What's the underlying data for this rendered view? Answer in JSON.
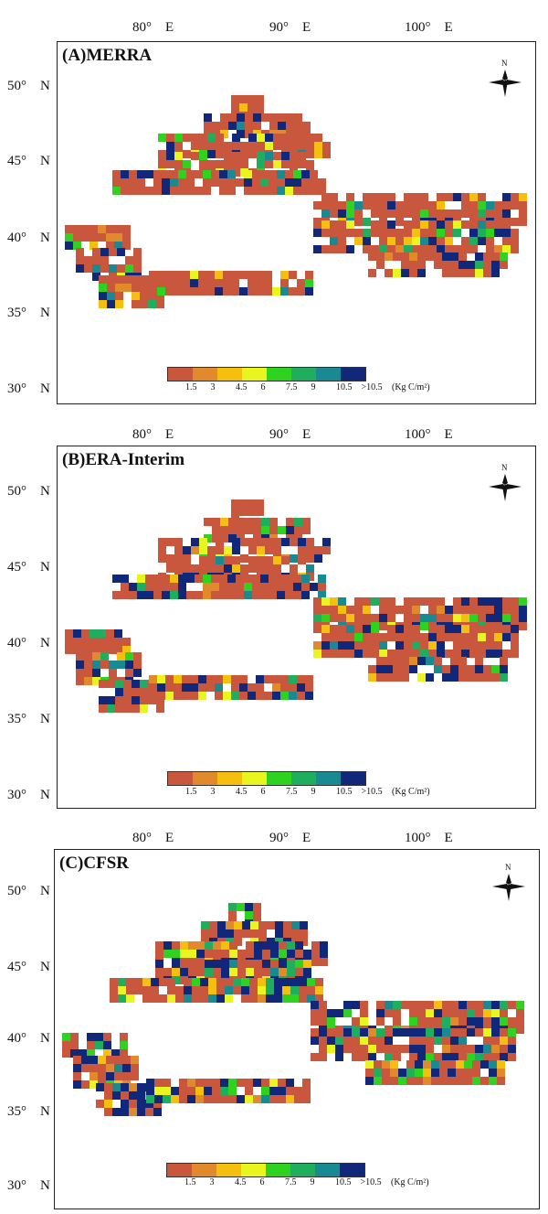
{
  "panels": [
    {
      "title": "(A)MERRA",
      "lon_labels": [
        "80°　E",
        "90°　E",
        "100°　E"
      ],
      "lat_labels": [
        "50°　N",
        "45°　N",
        "40°　N",
        "35°　N",
        "30°　N"
      ]
    },
    {
      "title": "(B)ERA-Interim",
      "lon_labels": [
        "80°　E",
        "90°　E",
        "100°　E"
      ],
      "lat_labels": [
        "50°　N",
        "45°　N",
        "40°　N",
        "35°　N",
        "30°　N"
      ]
    },
    {
      "title": "(C)CFSR",
      "lon_labels": [
        "80°　E",
        "90°　E",
        "100°　E"
      ],
      "lat_labels": [
        "50°　N",
        "45°　N",
        "40°　N",
        "35°　N",
        "30°　N"
      ]
    }
  ],
  "compass_label": "N",
  "legend": {
    "colors": [
      "#c9573e",
      "#e08a2b",
      "#f5bf10",
      "#e8f51e",
      "#2fd21f",
      "#1fae5e",
      "#1a8a92",
      "#11277a"
    ],
    "tick_labels": [
      "1.5",
      "3",
      "4.5",
      "6",
      "7.5",
      "9",
      "10.5",
      ">10.5"
    ],
    "unit": "(Kg C/m²)"
  }
}
